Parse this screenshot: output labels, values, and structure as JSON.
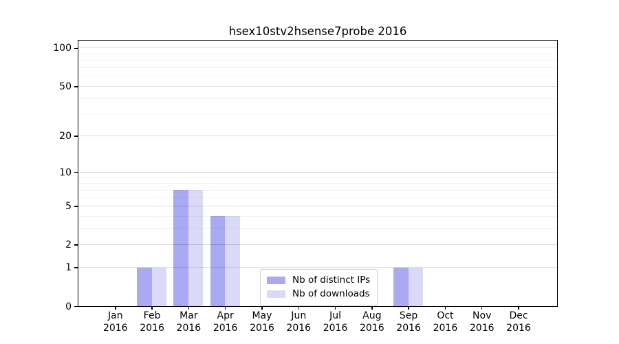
{
  "title": "hsex10stv2hsense7probe 2016",
  "colors": {
    "series_distinct_ips": "#a9a9f4",
    "series_downloads": "#dadaf8",
    "grid_major": "rgba(0,0,0,0.14)",
    "grid_minor": "rgba(0,0,0,0.055)",
    "axis": "#000000",
    "text": "#000000"
  },
  "legend": {
    "items": [
      {
        "label": "Nb of distinct IPs",
        "color": "#a9a9f4"
      },
      {
        "label": "Nb of downloads",
        "color": "#dadaf8"
      }
    ]
  },
  "chart_data": {
    "type": "bar",
    "title": "hsex10stv2hsense7probe 2016",
    "categories": [
      "Jan 2016",
      "Feb 2016",
      "Mar 2016",
      "Apr 2016",
      "May 2016",
      "Jun 2016",
      "Jul 2016",
      "Aug 2016",
      "Sep 2016",
      "Oct 2016",
      "Nov 2016",
      "Dec 2016"
    ],
    "series": [
      {
        "name": "Nb of distinct IPs",
        "color": "#a9a9f4",
        "values": [
          0,
          1,
          7,
          4,
          0,
          0,
          0,
          0,
          1,
          0,
          0,
          0
        ]
      },
      {
        "name": "Nb of downloads",
        "color": "#dadaf8",
        "values": [
          0,
          1,
          7,
          4,
          0,
          0,
          0,
          0,
          1,
          0,
          0,
          0
        ]
      }
    ],
    "xlabel": "",
    "ylabel": "",
    "yscale": "log1p",
    "ylim": [
      0,
      114.6
    ],
    "yticks": [
      0,
      1,
      2,
      5,
      10,
      20,
      50,
      100
    ],
    "minor_yticks": [
      3,
      4,
      6,
      7,
      8,
      9,
      30,
      40,
      60,
      70,
      80,
      90
    ],
    "grid": true,
    "legend_position": "inside-lower-center"
  }
}
